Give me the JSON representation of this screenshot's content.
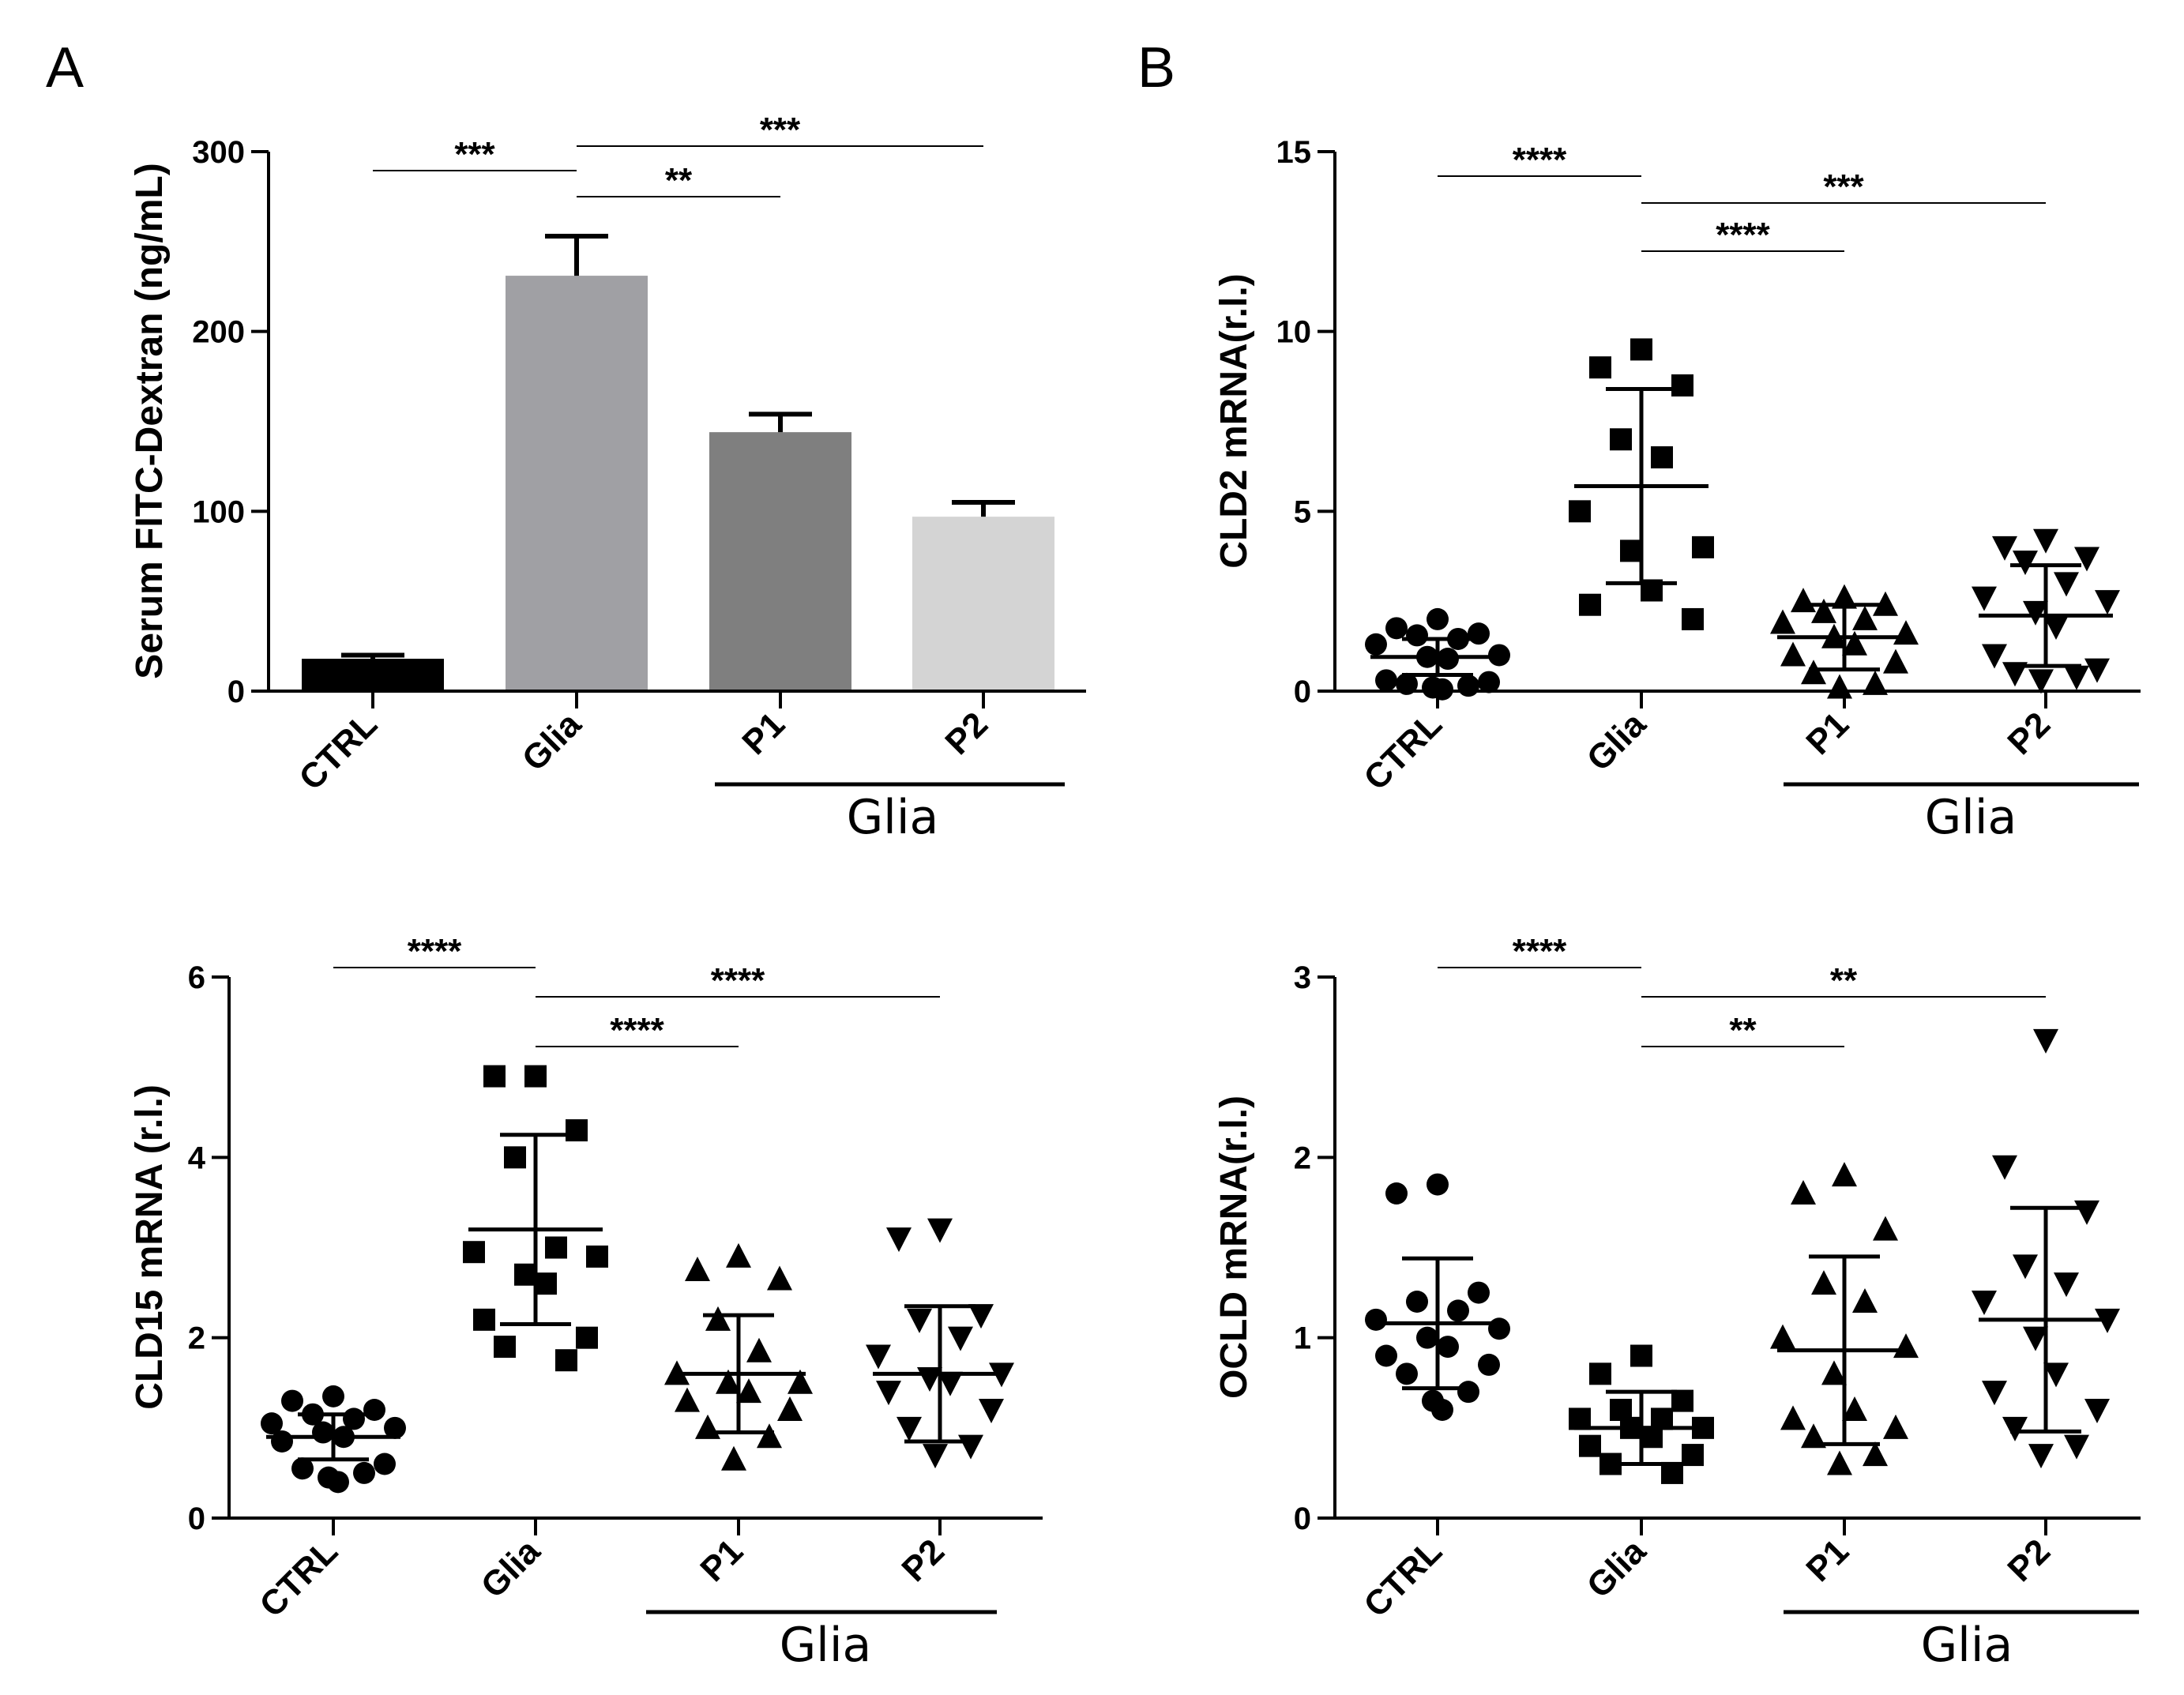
{
  "panel_letters": [
    "A",
    "B"
  ],
  "chart_data": [
    {
      "id": "fitc",
      "type": "bar",
      "title": "",
      "xlabel": "",
      "ylabel": "Serum FITC-Dextran (ng/mL)",
      "ylim": [
        0,
        300
      ],
      "yticks": [
        0,
        100,
        200,
        300
      ],
      "categories": [
        "CTRL",
        "Glia",
        "P1",
        "P2"
      ],
      "group_label": "Glia",
      "group_categories": [
        "P1",
        "P2"
      ],
      "values": [
        18,
        231,
        144,
        97
      ],
      "errors": [
        2,
        22,
        10,
        8
      ],
      "colors": [
        "#000000",
        "#a0a0a4",
        "#7f7f7f",
        "#d4d4d4"
      ],
      "significance": [
        {
          "from": "CTRL",
          "to": "Glia",
          "label": "***"
        },
        {
          "from": "Glia",
          "to": "P2",
          "label": "***"
        },
        {
          "from": "Glia",
          "to": "P1",
          "label": "**"
        }
      ]
    },
    {
      "id": "cld2",
      "type": "scatter",
      "title": "",
      "xlabel": "",
      "ylabel": "CLD2 mRNA(r.l.)",
      "ylim": [
        0,
        15
      ],
      "yticks": [
        0,
        5,
        10,
        15
      ],
      "categories": [
        "CTRL",
        "Glia",
        "P1",
        "P2"
      ],
      "group_label": "Glia",
      "group_categories": [
        "P1",
        "P2"
      ],
      "markers": [
        "circle",
        "square",
        "triangle-up",
        "triangle-down"
      ],
      "means": [
        0.95,
        5.7,
        1.5,
        2.1
      ],
      "sd": [
        0.5,
        2.7,
        0.9,
        1.4
      ],
      "points": [
        [
          2.0,
          1.6,
          1.45,
          1.55,
          1.3,
          1.75,
          1.0,
          0.95,
          0.9,
          0.3,
          0.2,
          0.1,
          0.05,
          0.15,
          0.25
        ],
        [
          9.5,
          8.5,
          9.0,
          7.0,
          6.5,
          5.0,
          4.0,
          3.9,
          2.8,
          2.4,
          2.0
        ],
        [
          2.5,
          2.4,
          2.2,
          2.0,
          1.9,
          1.6,
          1.5,
          1.3,
          1.0,
          0.8,
          0.5,
          0.2,
          0.1,
          2.6
        ],
        [
          4.2,
          4.0,
          3.7,
          3.6,
          3.0,
          2.6,
          2.5,
          2.2,
          1.8,
          1.0,
          0.6,
          0.5,
          0.4,
          0.3
        ]
      ],
      "significance": [
        {
          "from": "CTRL",
          "to": "Glia",
          "label": "****"
        },
        {
          "from": "Glia",
          "to": "P2",
          "label": "***"
        },
        {
          "from": "Glia",
          "to": "P1",
          "label": "****"
        }
      ]
    },
    {
      "id": "cld15",
      "type": "scatter",
      "title": "",
      "xlabel": "",
      "ylabel": "CLD15 mRNA (r.l.)",
      "ylim": [
        0,
        6
      ],
      "yticks": [
        0,
        2,
        4,
        6
      ],
      "categories": [
        "CTRL",
        "Glia",
        "P1",
        "P2"
      ],
      "group_label": "Glia",
      "group_categories": [
        "P1",
        "P2"
      ],
      "markers": [
        "circle",
        "square",
        "triangle-up",
        "triangle-down"
      ],
      "means": [
        0.9,
        3.2,
        1.6,
        1.6
      ],
      "sd": [
        0.25,
        1.05,
        0.65,
        0.75
      ],
      "points": [
        [
          1.35,
          1.3,
          1.2,
          1.15,
          1.1,
          1.05,
          1.0,
          0.95,
          0.9,
          0.85,
          0.6,
          0.55,
          0.5,
          0.45,
          0.4
        ],
        [
          4.9,
          4.9,
          4.3,
          4.0,
          3.0,
          2.95,
          2.9,
          2.7,
          2.6,
          2.2,
          2.0,
          1.75,
          1.9
        ],
        [
          2.9,
          2.75,
          2.65,
          2.2,
          1.85,
          1.6,
          1.5,
          1.4,
          1.3,
          1.0,
          0.9,
          0.65,
          1.2,
          1.5
        ],
        [
          3.2,
          3.1,
          2.2,
          2.0,
          1.8,
          1.6,
          1.55,
          1.5,
          1.4,
          1.2,
          1.0,
          0.8,
          0.7,
          2.25
        ]
      ],
      "significance": [
        {
          "from": "CTRL",
          "to": "Glia",
          "label": "****"
        },
        {
          "from": "Glia",
          "to": "P2",
          "label": "****"
        },
        {
          "from": "Glia",
          "to": "P1",
          "label": "****"
        }
      ]
    },
    {
      "id": "ocld",
      "type": "scatter",
      "title": "",
      "xlabel": "",
      "ylabel": "OCLD mRNA(r.l.)",
      "ylim": [
        0,
        3
      ],
      "yticks": [
        0,
        1,
        2,
        3
      ],
      "categories": [
        "CTRL",
        "Glia",
        "P1",
        "P2"
      ],
      "group_label": "Glia",
      "group_categories": [
        "P1",
        "P2"
      ],
      "markers": [
        "circle",
        "square",
        "triangle-up",
        "triangle-down"
      ],
      "means": [
        1.08,
        0.5,
        0.93,
        1.1
      ],
      "sd": [
        0.36,
        0.2,
        0.52,
        0.62
      ],
      "points": [
        [
          1.85,
          1.8,
          1.25,
          1.2,
          1.1,
          1.05,
          1.0,
          0.95,
          0.9,
          0.85,
          0.8,
          0.7,
          0.65,
          0.6,
          1.15
        ],
        [
          0.9,
          0.8,
          0.65,
          0.6,
          0.55,
          0.5,
          0.45,
          0.4,
          0.35,
          0.3,
          0.25,
          0.5,
          0.55
        ],
        [
          1.9,
          1.8,
          1.6,
          1.3,
          1.2,
          1.0,
          0.8,
          0.6,
          0.55,
          0.5,
          0.45,
          0.35,
          0.3,
          0.95
        ],
        [
          2.65,
          1.95,
          1.7,
          1.3,
          1.2,
          1.1,
          1.0,
          0.8,
          0.7,
          0.6,
          0.5,
          0.4,
          0.35,
          1.4
        ]
      ],
      "significance": [
        {
          "from": "CTRL",
          "to": "Glia",
          "label": "****"
        },
        {
          "from": "Glia",
          "to": "P2",
          "label": "**"
        },
        {
          "from": "Glia",
          "to": "P1",
          "label": "**"
        }
      ]
    }
  ]
}
